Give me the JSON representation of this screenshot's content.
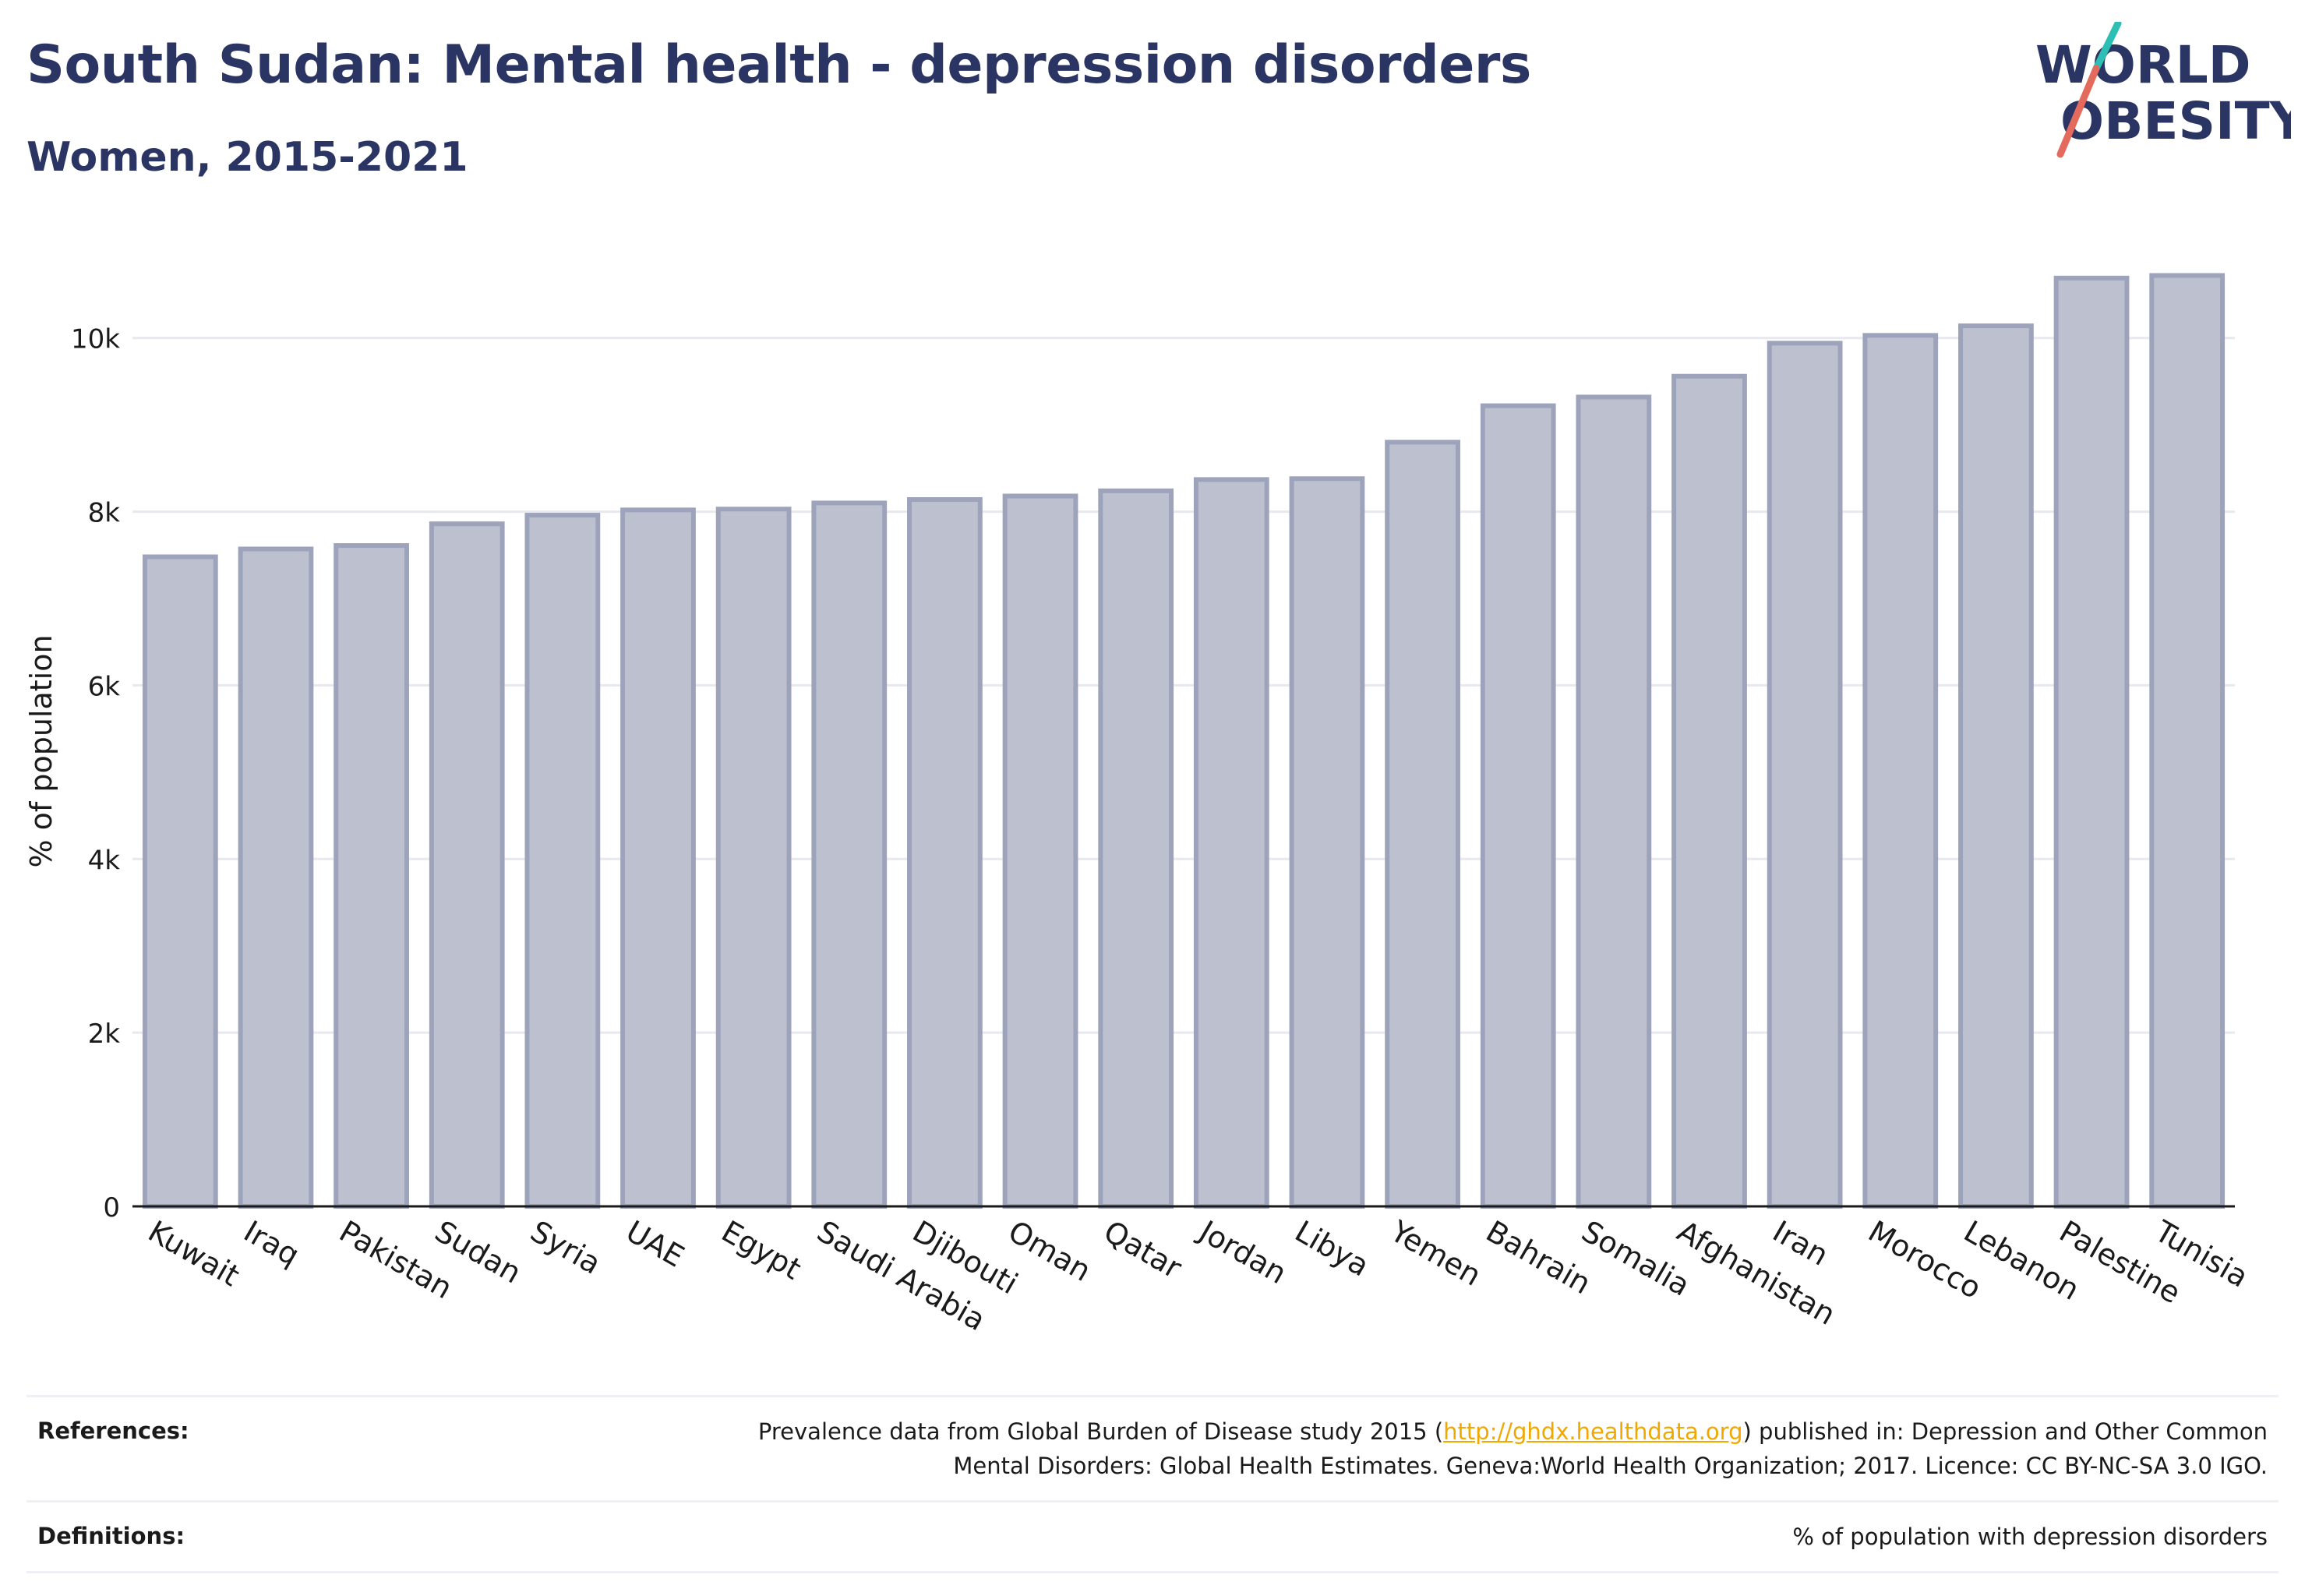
{
  "header": {
    "title": "South Sudan: Mental health - depression disorders",
    "subtitle": "Women, 2015-2021"
  },
  "logo": {
    "line1": "WORLD",
    "line2": "OBESITY"
  },
  "colors": {
    "title": "#2b3563",
    "bar_fill": "#bdc1cf",
    "bar_stroke": "#9da3bb",
    "grid": "#e7e9ef",
    "logo_teal": "#2dbfb3",
    "logo_coral": "#e36a5c",
    "link": "#f0a800"
  },
  "chart_data": {
    "type": "bar",
    "categories": [
      "Kuwait",
      "Iraq",
      "Pakistan",
      "Sudan",
      "Syria",
      "UAE",
      "Egypt",
      "Saudi Arabia",
      "Djibouti",
      "Oman",
      "Qatar",
      "Jordan",
      "Libya",
      "Yemen",
      "Bahrain",
      "Somalia",
      "Afghanistan",
      "Iran",
      "Morocco",
      "Lebanon",
      "Palestine",
      "Tunisia"
    ],
    "values": [
      7480,
      7570,
      7610,
      7860,
      7960,
      8020,
      8030,
      8100,
      8140,
      8180,
      8240,
      8370,
      8380,
      8800,
      9220,
      9320,
      9560,
      9940,
      10030,
      10140,
      10690,
      10720
    ],
    "ylabel": "% of population",
    "xlabel": "",
    "ylim": [
      0,
      11200
    ],
    "yticks": [
      0,
      2000,
      4000,
      6000,
      8000,
      10000
    ],
    "ytick_labels": [
      "0",
      "2k",
      "4k",
      "6k",
      "8k",
      "10k"
    ],
    "grid": true,
    "legend": "none"
  },
  "footer": {
    "references_label": "References:",
    "references_pre": "Prevalence data from Global Burden of Disease study 2015 (",
    "references_link": "http://ghdx.healthdata.org",
    "references_post": ") published in: Depression and Other Common",
    "references_line2": "Mental Disorders: Global Health Estimates. Geneva:World Health Organization; 2017. Licence: CC BY-NC-SA 3.0 IGO.",
    "definitions_label": "Definitions:",
    "definitions_text": "% of population with depression disorders"
  }
}
